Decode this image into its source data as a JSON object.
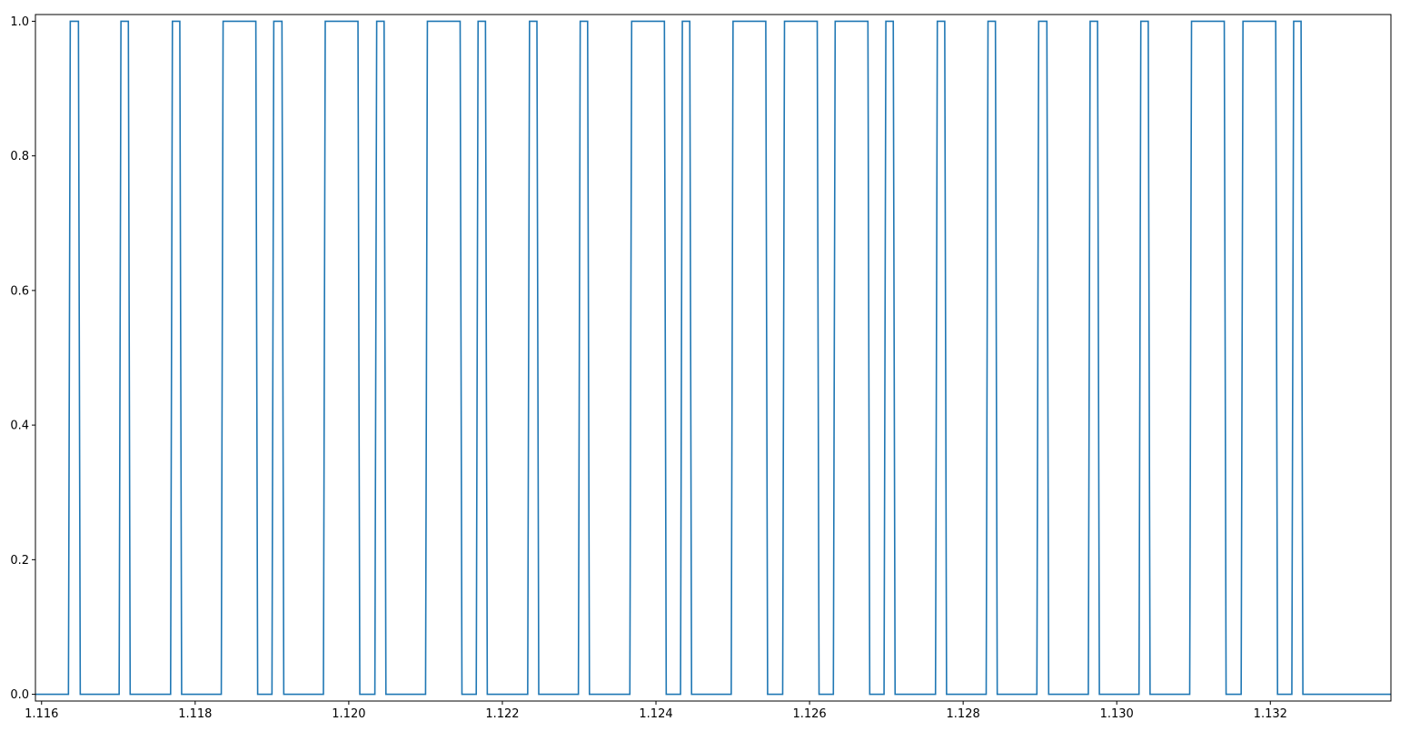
{
  "chart_data": {
    "type": "line",
    "step": true,
    "title": "",
    "xlabel": "",
    "ylabel": "",
    "xlim": [
      1.11592,
      1.13357
    ],
    "ylim": [
      -0.01,
      1.01
    ],
    "grid": false,
    "line_color": "#1f77b4",
    "x_ticks": [
      1.116,
      1.118,
      1.12,
      1.122,
      1.124,
      1.126,
      1.128,
      1.13,
      1.132
    ],
    "x_tick_labels": [
      "1.116",
      "1.118",
      "1.120",
      "1.122",
      "1.124",
      "1.126",
      "1.128",
      "1.130",
      "1.132"
    ],
    "y_ticks": [
      0.0,
      0.2,
      0.4,
      0.6,
      0.8,
      1.0
    ],
    "y_tick_labels": [
      "0.0",
      "0.2",
      "0.4",
      "0.6",
      "0.8",
      "1.0"
    ],
    "x_start": 1.11592,
    "x_end": 1.13357,
    "pulses": [
      [
        1.11635,
        1.11648
      ],
      [
        1.11701,
        1.11713
      ],
      [
        1.11768,
        1.1178
      ],
      [
        1.11834,
        1.11879
      ],
      [
        1.119,
        1.11913
      ],
      [
        1.11967,
        1.12012
      ],
      [
        1.12034,
        1.12046
      ],
      [
        1.121,
        1.12145
      ],
      [
        1.12166,
        1.12178
      ],
      [
        1.12233,
        1.12245
      ],
      [
        1.12299,
        1.12311
      ],
      [
        1.12366,
        1.12411
      ],
      [
        1.12432,
        1.12444
      ],
      [
        1.12498,
        1.12543
      ],
      [
        1.12565,
        1.1261
      ],
      [
        1.12631,
        1.12676
      ],
      [
        1.12697,
        1.12709
      ],
      [
        1.12764,
        1.12776
      ],
      [
        1.1283,
        1.12842
      ],
      [
        1.12896,
        1.12909
      ],
      [
        1.12963,
        1.12975
      ],
      [
        1.13029,
        1.13041
      ],
      [
        1.13095,
        1.1314
      ],
      [
        1.13162,
        1.13207
      ],
      [
        1.13228,
        1.1324
      ]
    ]
  }
}
